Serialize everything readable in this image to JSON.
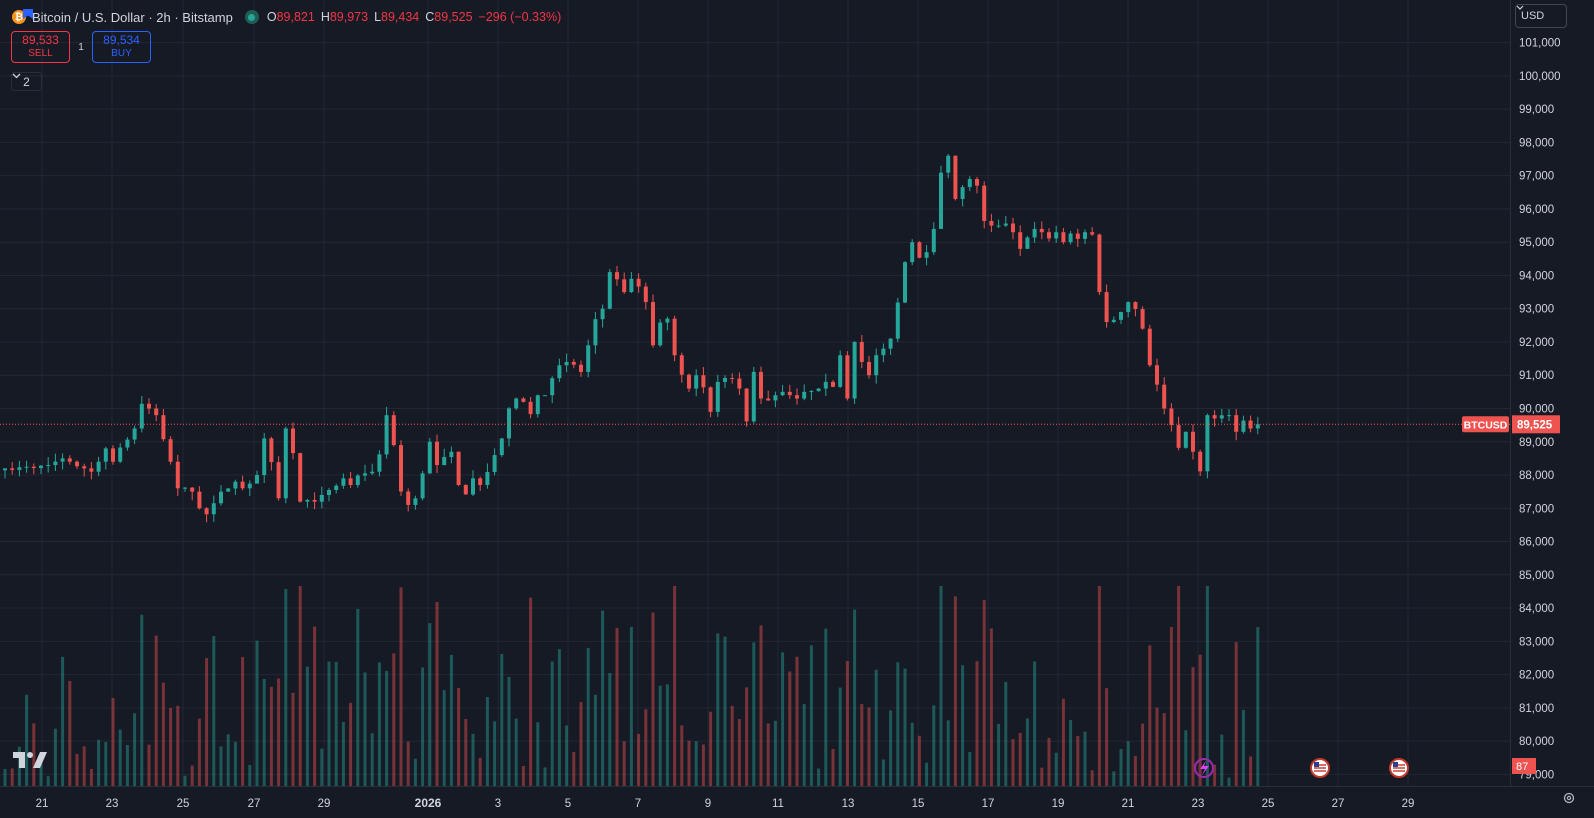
{
  "header": {
    "btc_glyph": "₿",
    "symbol_title": "Bitcoin / U.S. Dollar · 2h · Bitstamp",
    "ohlc": {
      "o_label": "O",
      "o_value": "89,821",
      "h_label": "H",
      "h_value": "89,973",
      "l_label": "L",
      "l_value": "89,434",
      "c_label": "C",
      "c_value": "89,525",
      "change": "−296 (−0.33%)"
    }
  },
  "trade": {
    "sell_price": "89,533",
    "sell_label": "SELL",
    "spread": "1",
    "buy_price": "89,534",
    "buy_label": "BUY"
  },
  "indicators_toggle": {
    "count": "2"
  },
  "currency_select": {
    "value": "USD"
  },
  "last_price": {
    "symbol": "BTCUSD",
    "value": "89,525"
  },
  "volume_label": "87",
  "colors": {
    "up": "#26a69a",
    "down": "#ef5350",
    "background": "#161a25",
    "grid": "#232733",
    "axis_text": "#d1d4dc"
  },
  "icons": [
    "bitcoin-icon",
    "flag-icon",
    "market-status-icon",
    "chevron-down-icon",
    "tradingview-logo-icon",
    "us-flag-icon",
    "lightning-icon",
    "gear-icon"
  ],
  "chart_data": {
    "type": "candlestick",
    "timeframe": "2h",
    "y_ticks": [
      "101,000",
      "100,000",
      "99,000",
      "98,000",
      "97,000",
      "96,000",
      "95,000",
      "94,000",
      "93,000",
      "92,000",
      "91,000",
      "90,000",
      "89,000",
      "88,000",
      "87,000",
      "86,000",
      "85,000",
      "84,000",
      "83,000",
      "82,000",
      "81,000",
      "80,000",
      "79,000"
    ],
    "x_ticks": [
      "21",
      "23",
      "25",
      "27",
      "29",
      "2026",
      "3",
      "5",
      "7",
      "9",
      "11",
      "13",
      "15",
      "17",
      "19",
      "21",
      "23",
      "25",
      "27",
      "29"
    ],
    "ylim": [
      79000,
      101500
    ],
    "current_price": 89525,
    "price_path": [
      [
        0,
        88200
      ],
      [
        6,
        88300
      ],
      [
        8,
        88500
      ],
      [
        12,
        88100
      ],
      [
        14,
        88800
      ],
      [
        15,
        88400
      ],
      [
        18,
        89400
      ],
      [
        19,
        90200
      ],
      [
        21,
        89800
      ],
      [
        23,
        88400
      ],
      [
        24,
        87600
      ],
      [
        26,
        87500
      ],
      [
        27,
        87000
      ],
      [
        28,
        86800
      ],
      [
        30,
        87500
      ],
      [
        32,
        87800
      ],
      [
        33,
        87600
      ],
      [
        35,
        88000
      ],
      [
        36,
        89100
      ],
      [
        37,
        88300
      ],
      [
        38,
        87300
      ],
      [
        39,
        89400
      ],
      [
        40,
        88600
      ],
      [
        41,
        87200
      ],
      [
        43,
        87300
      ],
      [
        44,
        87400
      ],
      [
        46,
        87700
      ],
      [
        47,
        87900
      ],
      [
        48,
        87700
      ],
      [
        49,
        88000
      ],
      [
        51,
        88100
      ],
      [
        52,
        88700
      ],
      [
        53,
        89800
      ],
      [
        54,
        88900
      ],
      [
        55,
        87500
      ],
      [
        56,
        87100
      ],
      [
        57,
        87300
      ],
      [
        58,
        88000
      ],
      [
        59,
        89000
      ],
      [
        60,
        88300
      ],
      [
        62,
        88700
      ],
      [
        63,
        87700
      ],
      [
        64,
        87500
      ],
      [
        65,
        87900
      ],
      [
        66,
        87700
      ],
      [
        67,
        88100
      ],
      [
        68,
        88600
      ],
      [
        69,
        89100
      ],
      [
        70,
        89900
      ],
      [
        71,
        90300
      ],
      [
        72,
        90200
      ],
      [
        73,
        89800
      ],
      [
        74,
        90400
      ],
      [
        75,
        90400
      ],
      [
        76,
        91000
      ],
      [
        77,
        91300
      ],
      [
        78,
        91400
      ],
      [
        79,
        91300
      ],
      [
        80,
        91100
      ],
      [
        81,
        91900
      ],
      [
        82,
        92600
      ],
      [
        83,
        93000
      ],
      [
        84,
        94100
      ],
      [
        85,
        93800
      ],
      [
        86,
        93500
      ],
      [
        87,
        93900
      ],
      [
        88,
        93600
      ],
      [
        89,
        93200
      ],
      [
        90,
        91900
      ],
      [
        91,
        92600
      ],
      [
        92,
        92700
      ],
      [
        93,
        91600
      ],
      [
        94,
        91100
      ],
      [
        95,
        90600
      ],
      [
        96,
        91000
      ],
      [
        97,
        90700
      ],
      [
        98,
        89900
      ],
      [
        99,
        90800
      ],
      [
        100,
        91000
      ],
      [
        101,
        90900
      ],
      [
        102,
        90600
      ],
      [
        103,
        89700
      ],
      [
        104,
        91100
      ],
      [
        105,
        90300
      ],
      [
        106,
        90300
      ],
      [
        107,
        90400
      ],
      [
        108,
        90500
      ],
      [
        109,
        90400
      ],
      [
        110,
        90300
      ],
      [
        111,
        90500
      ],
      [
        112,
        90600
      ],
      [
        113,
        90600
      ],
      [
        114,
        90800
      ],
      [
        115,
        90700
      ],
      [
        116,
        91600
      ],
      [
        117,
        90300
      ],
      [
        118,
        92100
      ],
      [
        119,
        91400
      ],
      [
        120,
        91000
      ],
      [
        121,
        91500
      ],
      [
        122,
        91800
      ],
      [
        123,
        92100
      ],
      [
        124,
        93200
      ],
      [
        125,
        94400
      ],
      [
        126,
        95000
      ],
      [
        127,
        94500
      ],
      [
        128,
        94700
      ],
      [
        129,
        95400
      ],
      [
        130,
        97000
      ],
      [
        131,
        97600
      ],
      [
        132,
        96300
      ],
      [
        133,
        96600
      ],
      [
        134,
        96900
      ],
      [
        135,
        96700
      ],
      [
        136,
        95600
      ],
      [
        137,
        95500
      ],
      [
        138,
        95500
      ],
      [
        139,
        95600
      ],
      [
        140,
        95300
      ],
      [
        141,
        94800
      ],
      [
        142,
        95200
      ],
      [
        143,
        95400
      ],
      [
        144,
        95300
      ],
      [
        145,
        95100
      ],
      [
        146,
        95300
      ],
      [
        147,
        95000
      ],
      [
        148,
        95200
      ],
      [
        149,
        95100
      ],
      [
        150,
        95300
      ],
      [
        151,
        95200
      ],
      [
        152,
        93500
      ],
      [
        153,
        92600
      ],
      [
        154,
        92700
      ],
      [
        155,
        92900
      ],
      [
        156,
        93200
      ],
      [
        157,
        93000
      ],
      [
        158,
        92400
      ],
      [
        159,
        91300
      ],
      [
        160,
        90700
      ],
      [
        161,
        90000
      ],
      [
        162,
        89500
      ],
      [
        163,
        88800
      ],
      [
        164,
        89300
      ],
      [
        165,
        88700
      ],
      [
        166,
        88100
      ],
      [
        167,
        89800
      ],
      [
        168,
        89700
      ],
      [
        169,
        89900
      ],
      [
        170,
        89800
      ],
      [
        171,
        89300
      ],
      [
        172,
        89600
      ],
      [
        173,
        89400
      ],
      [
        174,
        89525
      ]
    ],
    "price_path_note_units": "pairs of [bar index, USD price]"
  }
}
